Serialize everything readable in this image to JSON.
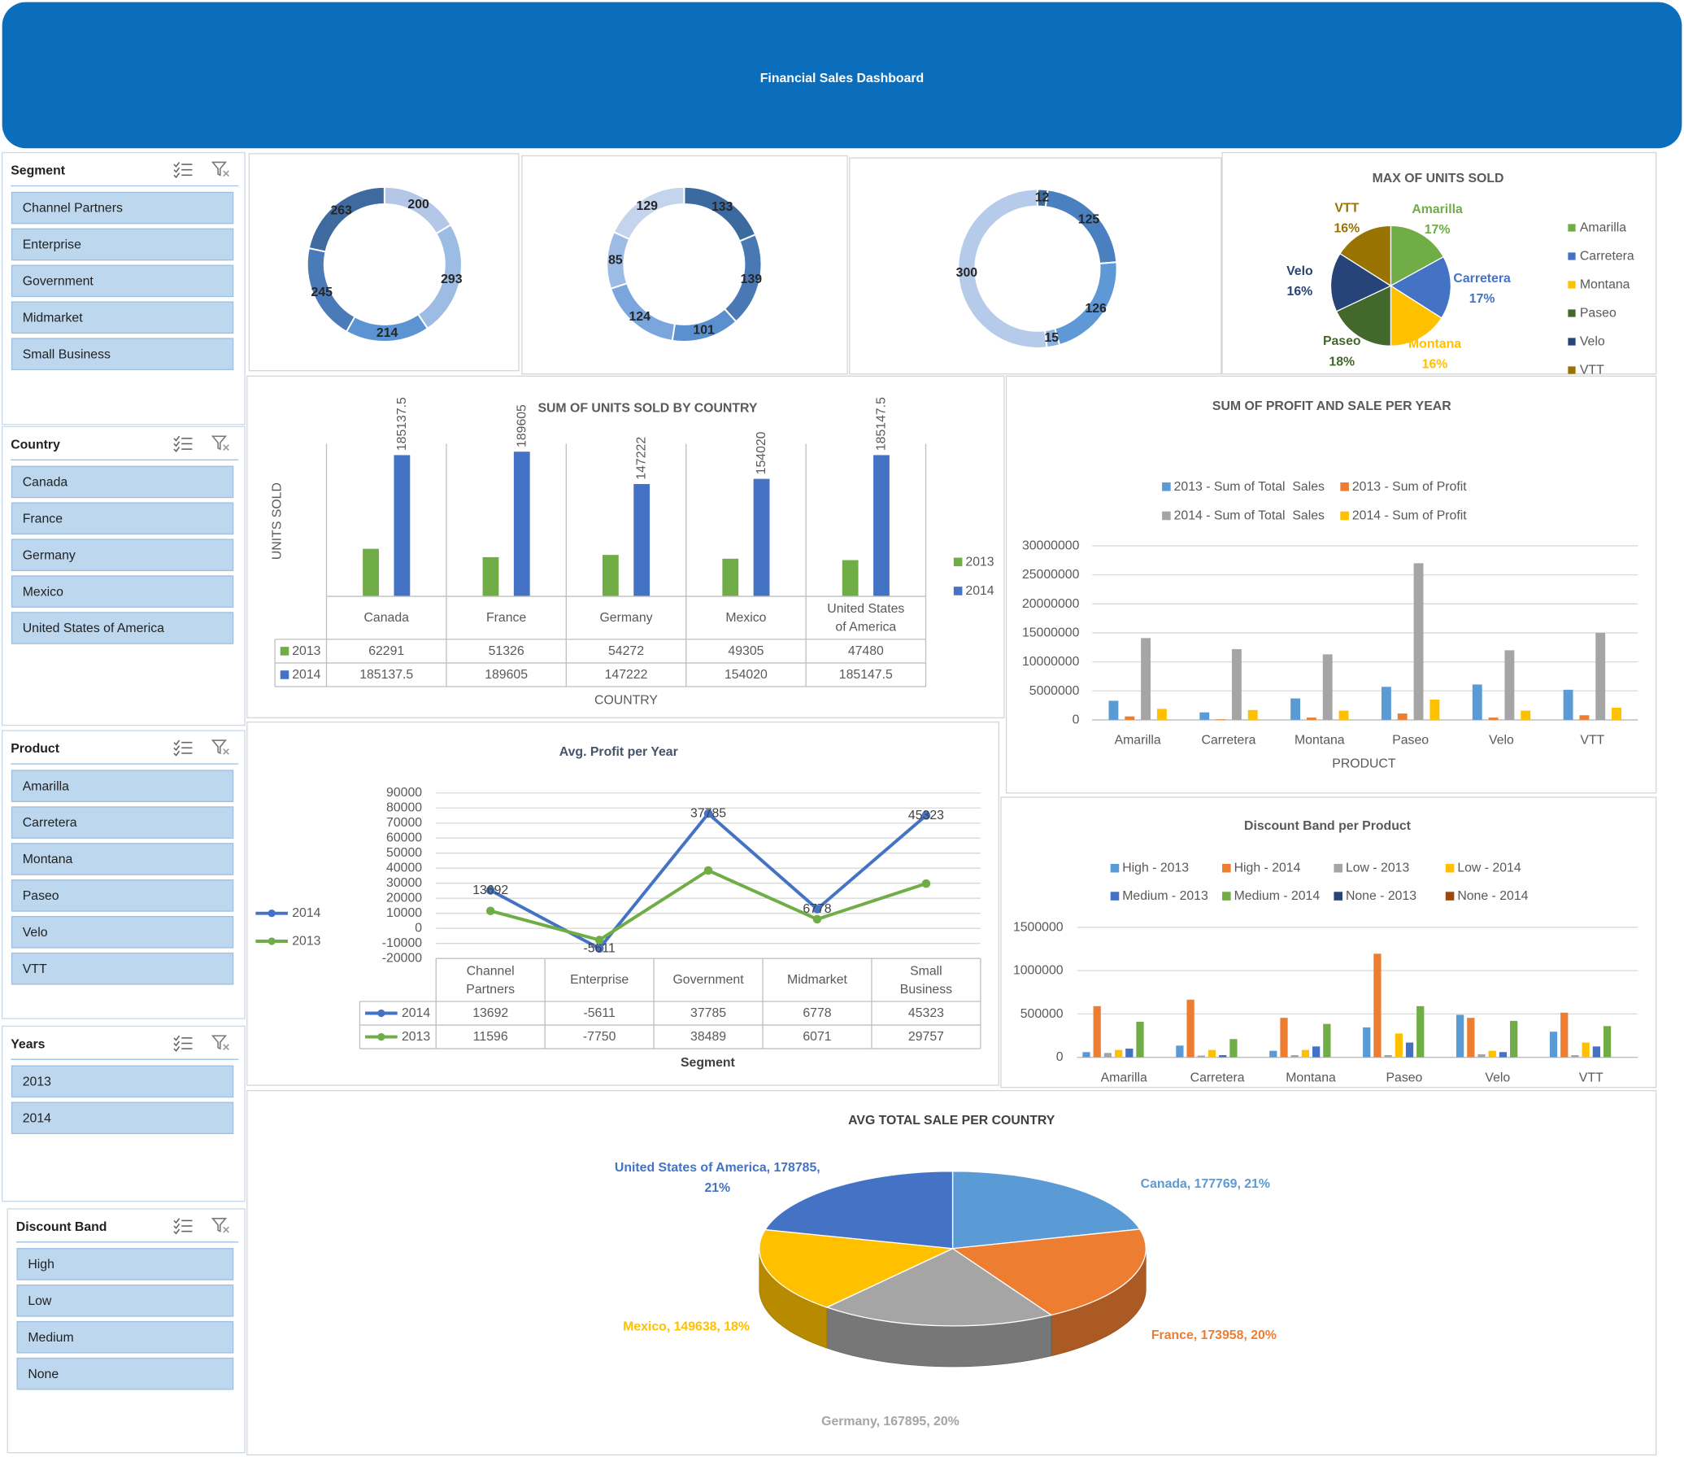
{
  "title": "Financial Sales Dashboard",
  "slicers": [
    {
      "title": "Segment",
      "items": [
        "Channel Partners",
        "Enterprise",
        "Government",
        "Midmarket",
        "Small Business"
      ]
    },
    {
      "title": "Country",
      "items": [
        "Canada",
        "France",
        "Germany",
        "Mexico",
        "United States of America"
      ]
    },
    {
      "title": "Product",
      "items": [
        "Amarilla",
        "Carretera",
        "Montana",
        "Paseo",
        "Velo",
        "VTT"
      ]
    },
    {
      "title": "Years",
      "items": [
        "2013",
        "2014"
      ]
    },
    {
      "title": "Discount Band",
      "items": [
        "High",
        "Low",
        "Medium",
        "None"
      ]
    }
  ],
  "chart_data": [
    {
      "type": "donut",
      "values": [
        200,
        293,
        214,
        245,
        263
      ],
      "colors": [
        "#b4c7e7",
        "#9dbce4",
        "#5b93d3",
        "#4a7ab8",
        "#3e6aa0"
      ]
    },
    {
      "type": "donut",
      "values": [
        133,
        139,
        101,
        124,
        85,
        129
      ],
      "colors": [
        "#3b6aa0",
        "#4a78b5",
        "#5a8fd0",
        "#7aa5dd",
        "#9cbbe5",
        "#c3d4ec"
      ]
    },
    {
      "type": "donut",
      "values": [
        12,
        125,
        126,
        15,
        300
      ],
      "colors": [
        "#3b6aa0",
        "#4a7fc0",
        "#5f98d6",
        "#8ab0e0",
        "#b6cbea"
      ]
    },
    {
      "type": "pie",
      "title": "MAX OF UNITS SOLD",
      "categories": [
        "Amarilla",
        "Carretera",
        "Montana",
        "Paseo",
        "Velo",
        "VTT"
      ],
      "values": [
        17,
        17,
        16,
        18,
        16,
        16
      ],
      "value_labels": [
        "17%",
        "17%",
        "16%",
        "18%",
        "16%",
        "16%"
      ],
      "colors": [
        "#70ad47",
        "#4472c4",
        "#ffc000",
        "#43682b",
        "#264478",
        "#997300"
      ],
      "legend": "right"
    },
    {
      "type": "bar",
      "title": "SUM OF UNITS SOLD BY COUNTRY",
      "y_label": "UNITS SOLD",
      "x_label": "COUNTRY",
      "categories": [
        "Canada",
        "France",
        "Germany",
        "Mexico",
        "United States of America"
      ],
      "series": [
        {
          "name": "2013",
          "color": "#70ad47",
          "values": [
            62291,
            51326,
            54272,
            49305,
            47480
          ]
        },
        {
          "name": "2014",
          "color": "#4472c4",
          "values": [
            185137.5,
            189605,
            147222,
            154020,
            185147.5
          ],
          "data_labels": true
        }
      ],
      "ylim": [
        0,
        200000
      ],
      "data_table": true,
      "legend": "right"
    },
    {
      "type": "bar",
      "title": "SUM OF PROFIT AND SALE PER YEAR",
      "x_label": "PRODUCT",
      "categories": [
        "Amarilla",
        "Carretera",
        "Montana",
        "Paseo",
        "Velo",
        "VTT"
      ],
      "series": [
        {
          "name": "2013 - Sum of Total  Sales",
          "color": "#5b9bd5",
          "values": [
            3300000,
            1300000,
            3700000,
            5700000,
            6100000,
            5200000
          ]
        },
        {
          "name": "2013 - Sum of Profit",
          "color": "#ed7d31",
          "values": [
            600000,
            100000,
            400000,
            1100000,
            400000,
            800000
          ]
        },
        {
          "name": "2014 - Sum of Total  Sales",
          "color": "#a5a5a5",
          "values": [
            14100000,
            12200000,
            11300000,
            27000000,
            12000000,
            15000000
          ]
        },
        {
          "name": "2014 - Sum of Profit",
          "color": "#ffc000",
          "values": [
            1900000,
            1700000,
            1600000,
            3500000,
            1600000,
            2100000
          ]
        }
      ],
      "ylim": [
        0,
        30000000
      ],
      "yticks": [
        0,
        5000000,
        10000000,
        15000000,
        20000000,
        25000000,
        30000000
      ],
      "grid": true,
      "legend": "top"
    },
    {
      "type": "line",
      "title": "Avg. Profit per Year",
      "x_label": "Segment",
      "stacked": true,
      "categories": [
        "Channel Partners",
        "Enterprise",
        "Government",
        "Midmarket",
        "Small Business"
      ],
      "series": [
        {
          "name": "2014",
          "color": "#4472c4",
          "values": [
            13692,
            -5611,
            37785,
            6778,
            45323
          ],
          "data_labels": true
        },
        {
          "name": "2013",
          "color": "#70ad47",
          "values": [
            11596,
            -7750,
            38489,
            6071,
            29757
          ]
        }
      ],
      "ylim": [
        -20000,
        90000
      ],
      "yticks": [
        -20000,
        -10000,
        0,
        10000,
        20000,
        30000,
        40000,
        50000,
        60000,
        70000,
        80000,
        90000
      ],
      "grid": true,
      "data_table": true,
      "legend": "left"
    },
    {
      "type": "bar",
      "title": "Discount Band per Product",
      "categories": [
        "Amarilla",
        "Carretera",
        "Montana",
        "Paseo",
        "Velo",
        "VTT"
      ],
      "series": [
        {
          "name": "High - 2013",
          "color": "#5b9bd5",
          "values": [
            60000,
            135000,
            75000,
            345000,
            490000,
            295000
          ]
        },
        {
          "name": "High - 2014",
          "color": "#ed7d31",
          "values": [
            590000,
            665000,
            455000,
            1195000,
            455000,
            515000
          ]
        },
        {
          "name": "Low - 2013",
          "color": "#a5a5a5",
          "values": [
            50000,
            20000,
            25000,
            25000,
            35000,
            25000
          ]
        },
        {
          "name": "Low - 2014",
          "color": "#ffc000",
          "values": [
            85000,
            85000,
            85000,
            275000,
            75000,
            170000
          ]
        },
        {
          "name": "Medium - 2013",
          "color": "#4472c4",
          "values": [
            100000,
            25000,
            125000,
            170000,
            60000,
            125000
          ]
        },
        {
          "name": "Medium - 2014",
          "color": "#70ad47",
          "values": [
            410000,
            210000,
            385000,
            590000,
            420000,
            360000
          ]
        },
        {
          "name": "None - 2013",
          "color": "#264478",
          "values": [
            0,
            0,
            0,
            0,
            0,
            0
          ]
        },
        {
          "name": "None - 2014",
          "color": "#9e480e",
          "values": [
            0,
            0,
            0,
            0,
            0,
            0
          ]
        }
      ],
      "ylim": [
        0,
        1500000
      ],
      "yticks": [
        0,
        500000,
        1000000,
        1500000
      ],
      "grid": true,
      "legend": "top"
    },
    {
      "type": "pie3d",
      "title": "AVG TOTAL SALE PER COUNTRY",
      "categories": [
        "Canada",
        "France",
        "Germany",
        "Mexico",
        "United States of America"
      ],
      "values": [
        177769,
        173958,
        167895,
        149638,
        178785
      ],
      "value_labels": [
        "Canada, 177769, 21%",
        "France, 173958, 20%",
        "Germany, 167895, 20%",
        "Mexico, 149638, 18%",
        "United States of America, 178785, 21%"
      ],
      "colors": [
        "#5b9bd5",
        "#ed7d31",
        "#a5a5a5",
        "#ffc000",
        "#4472c4"
      ]
    }
  ]
}
